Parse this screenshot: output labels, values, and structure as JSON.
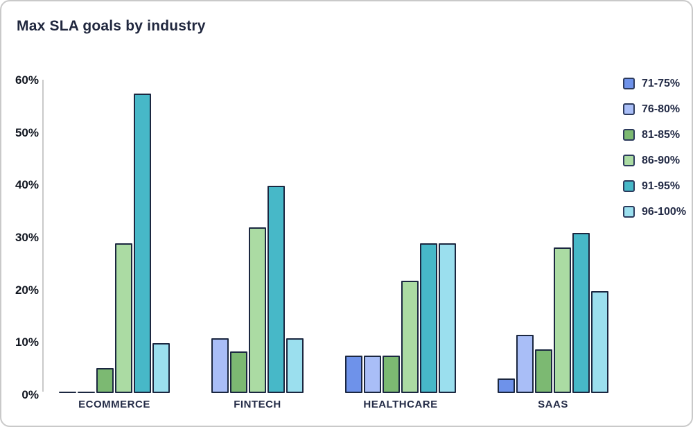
{
  "chart_data": {
    "type": "bar",
    "title": "Max SLA goals by industry",
    "categories": [
      "ECOMMERCE",
      "FINTECH",
      "HEALTHCARE",
      "SAAS"
    ],
    "series": [
      {
        "name": "71-75%",
        "color": "#6e92ea",
        "values": [
          0,
          null,
          7.1,
          2.8
        ]
      },
      {
        "name": "76-80%",
        "color": "#a9bef7",
        "values": [
          0,
          10.5,
          7.1,
          11.1
        ]
      },
      {
        "name": "81-85%",
        "color": "#7cb972",
        "values": [
          4.8,
          7.9,
          7.1,
          8.3
        ]
      },
      {
        "name": "86-90%",
        "color": "#abdba3",
        "values": [
          28.6,
          31.6,
          21.4,
          27.8
        ]
      },
      {
        "name": "91-95%",
        "color": "#47b8c8",
        "values": [
          57.1,
          39.5,
          28.6,
          30.6
        ]
      },
      {
        "name": "96-100%",
        "color": "#9bdfee",
        "values": [
          9.5,
          10.5,
          28.6,
          19.4
        ]
      }
    ],
    "xlabel": "",
    "ylabel": "",
    "ylim": [
      0,
      60
    ],
    "yticks": [
      "0%",
      "10%",
      "20%",
      "30%",
      "40%",
      "50%",
      "60%"
    ],
    "legend_position": "right",
    "grid": false,
    "colors": {
      "bar_border": "#1b2740",
      "axis_line": "#c9c9c9",
      "text": "#242c47",
      "title_text": "#20273e",
      "card_border": "#c9c9c9",
      "background": "#ffffff"
    }
  }
}
